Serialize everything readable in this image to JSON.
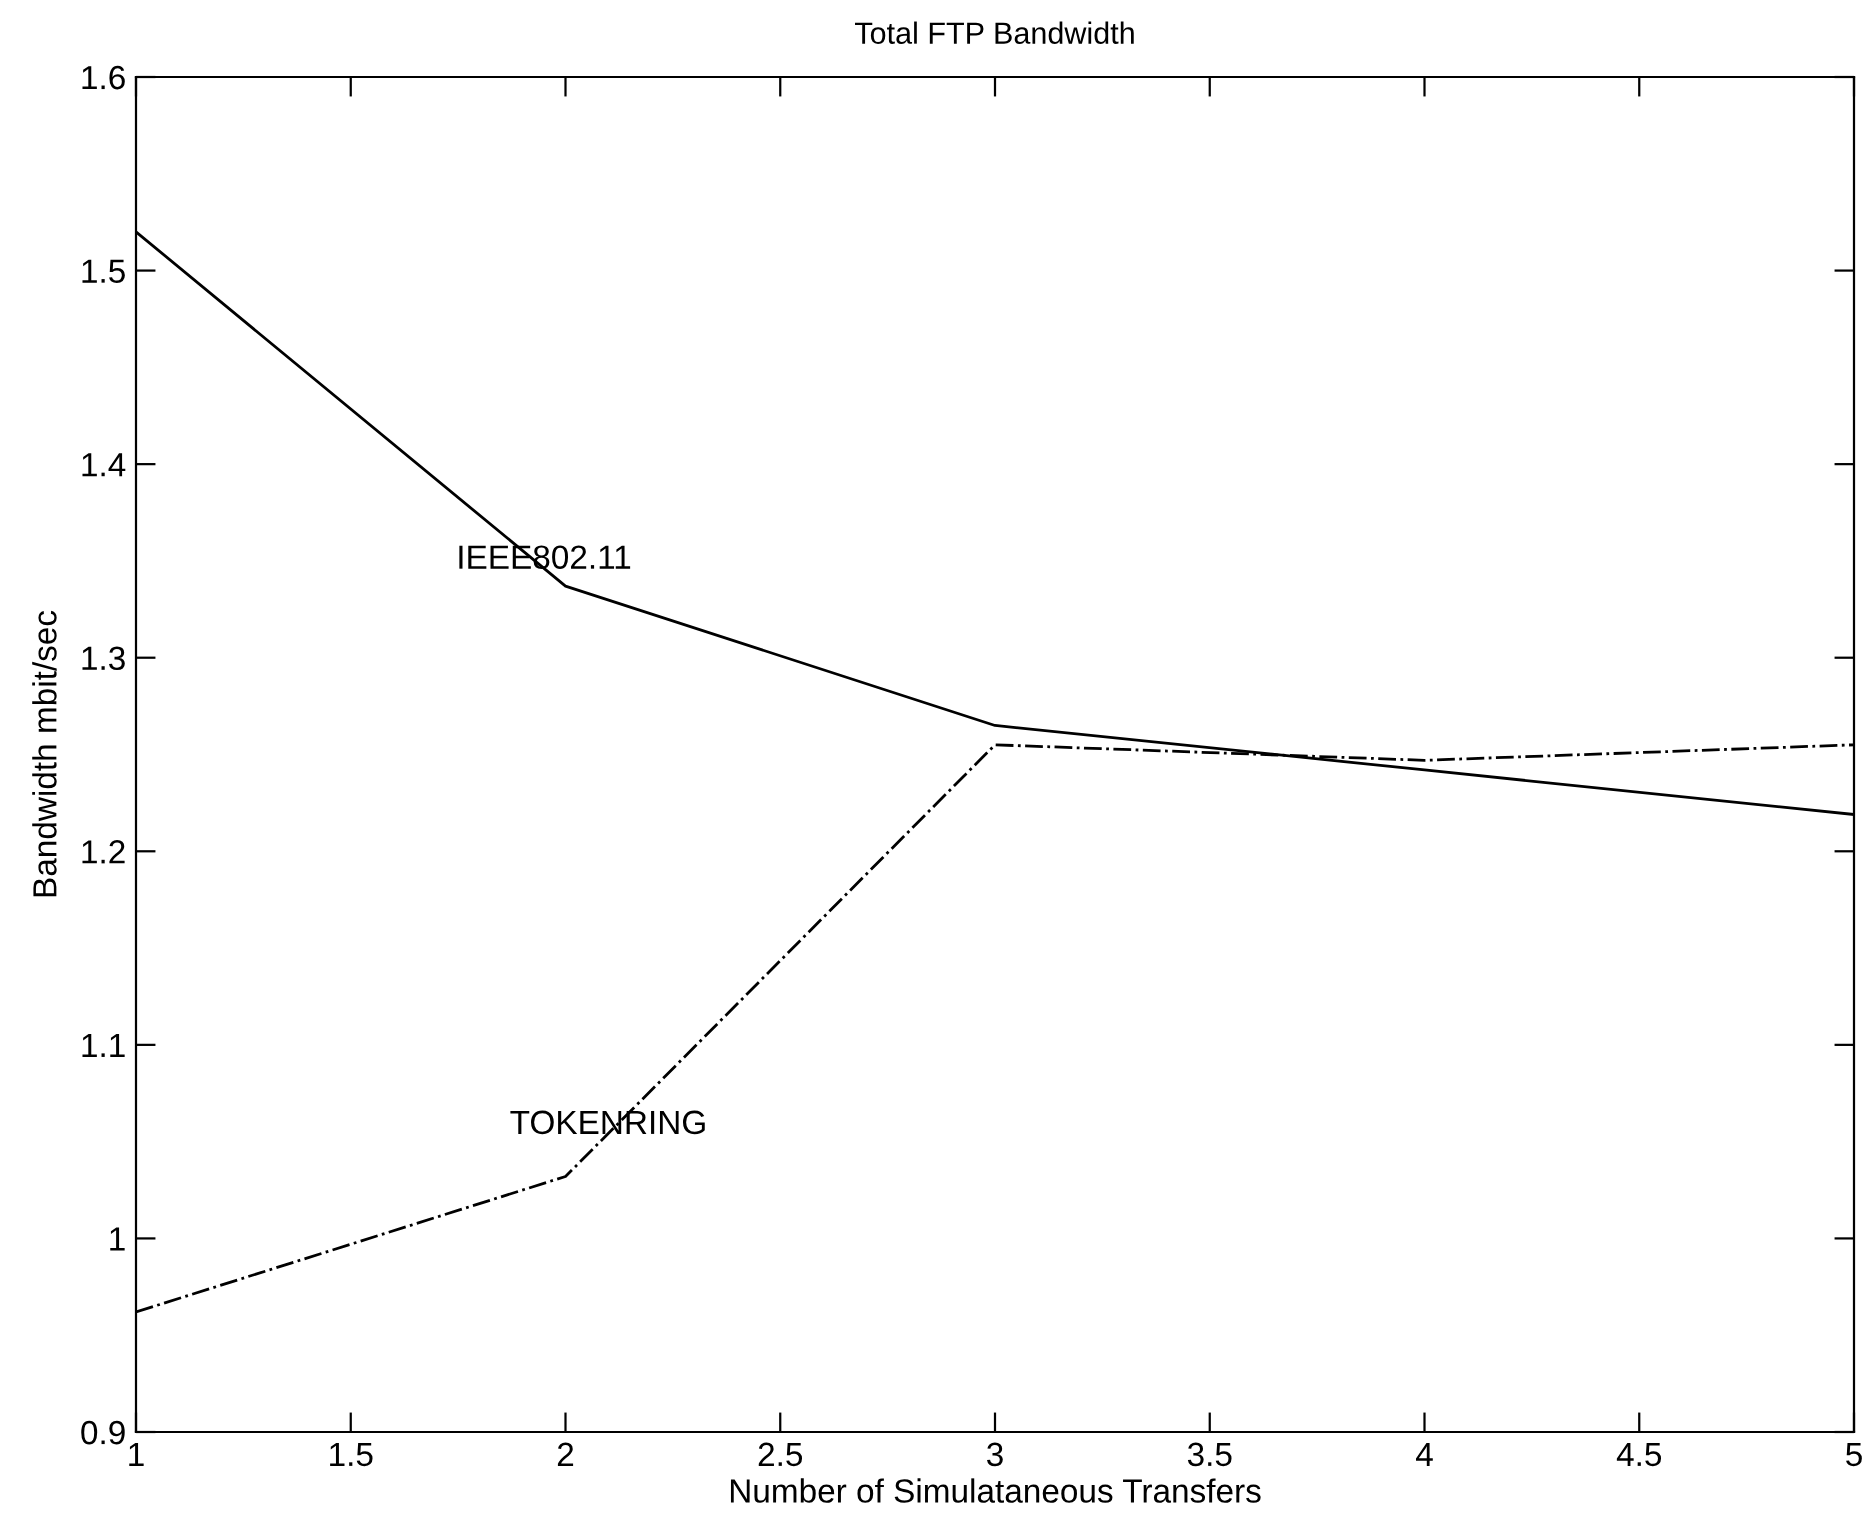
{
  "chart_data": {
    "type": "line",
    "title": "Total FTP Bandwidth",
    "xlabel": "Number of Simulataneous Transfers",
    "ylabel": "Bandwidth mbit/sec",
    "x": [
      1,
      2,
      3,
      4,
      5
    ],
    "series": [
      {
        "color": "#000000",
        "line_style": "solid",
        "values": [
          1.52,
          1.337,
          1.265,
          1.242,
          1.219
        ]
      },
      {
        "color": "#000000",
        "line_style": "dashdot",
        "values": [
          0.962,
          1.032,
          1.255,
          1.247,
          1.255
        ]
      }
    ],
    "annotations": [
      {
        "text": "IEEE802.11",
        "x": 1.95,
        "y": 1.346
      },
      {
        "text": "TOKENRING",
        "x": 2.1,
        "y": 1.054
      }
    ],
    "xlim": [
      1,
      5
    ],
    "ylim": [
      0.9,
      1.6
    ],
    "xticks": [
      1,
      1.5,
      2,
      2.5,
      3,
      3.5,
      4,
      4.5,
      5
    ],
    "yticks": [
      0.9,
      1,
      1.1,
      1.2,
      1.3,
      1.4,
      1.5,
      1.6
    ],
    "grid": false,
    "legend": false,
    "marker": "none"
  }
}
